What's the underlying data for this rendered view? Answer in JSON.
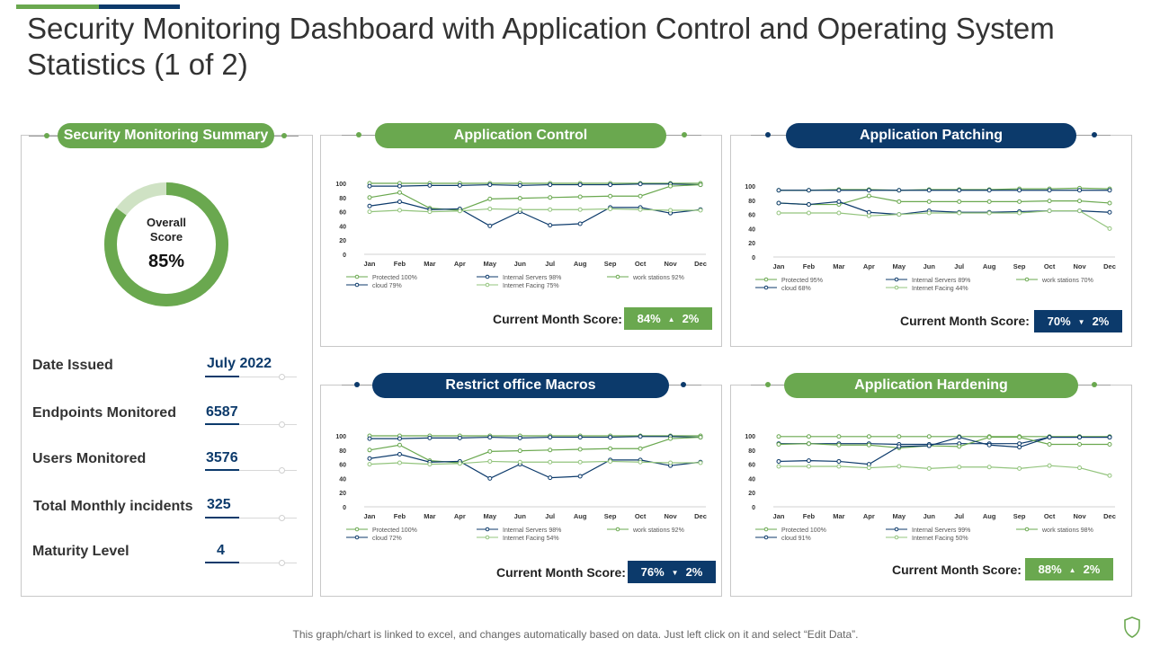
{
  "title": "Security Monitoring Dashboard with Application Control and Operating System Statistics (1 of 2)",
  "colors": {
    "green": "#6aa84f",
    "navy": "#0c3a6b",
    "light_green": "#cfe2c4"
  },
  "summary": {
    "header": "Security Monitoring Summary",
    "overall_label_1": "Overall",
    "overall_label_2": "Score",
    "overall_value": "85%",
    "overall_percent": 85,
    "stats": [
      {
        "label": "Date Issued",
        "value": "July 2022"
      },
      {
        "label": "Endpoints Monitored",
        "value": "6587"
      },
      {
        "label": "Users Monitored",
        "value": "3576"
      },
      {
        "label": "Total Monthly incidents",
        "value": "325"
      },
      {
        "label": "Maturity Level",
        "value": "4"
      }
    ]
  },
  "panels": [
    {
      "header": "Application Control",
      "score_label": "Current Month Score:",
      "score_value": "84%",
      "score_arrow": "▲",
      "score_change": "2%",
      "score_color": "green"
    },
    {
      "header": "Application Patching",
      "score_label": "Current Month Score:",
      "score_value": "70%",
      "score_arrow": "▼",
      "score_change": "2%",
      "score_color": "navy"
    },
    {
      "header": "Restrict  office Macros",
      "score_label": "Current Month Score:",
      "score_value": "76%",
      "score_arrow": "▼",
      "score_change": "2%",
      "score_color": "navy"
    },
    {
      "header": "Application Hardening",
      "score_label": "Current Month Score:",
      "score_value": "88%",
      "score_arrow": "▲",
      "score_change": "2%",
      "score_color": "green"
    }
  ],
  "chart_data": [
    {
      "type": "line",
      "title": "Application Control",
      "categories": [
        "Jan",
        "Feb",
        "Mar",
        "Apr",
        "May",
        "Jun",
        "Jul",
        "Aug",
        "Sep",
        "Oct",
        "Nov",
        "Dec"
      ],
      "ylim": [
        0,
        100
      ],
      "yticks": [
        "0",
        "20",
        "40",
        "60",
        "80",
        "100"
      ],
      "series": [
        {
          "name": "Protected 100%",
          "color": "#6aa84f",
          "values": [
            100,
            100,
            100,
            100,
            100,
            100,
            100,
            100,
            100,
            100,
            100,
            100
          ]
        },
        {
          "name": "Internal Servers 98%",
          "color": "#0c3a6b",
          "values": [
            96,
            96,
            97,
            97,
            98,
            97,
            98,
            98,
            98,
            99,
            99,
            98
          ]
        },
        {
          "name": "work stations 92%",
          "color": "#6aa84f",
          "values": [
            80,
            87,
            65,
            62,
            78,
            79,
            80,
            81,
            82,
            82,
            96,
            98
          ]
        },
        {
          "name": "cloud 79%",
          "color": "#0c3a6b",
          "values": [
            68,
            74,
            63,
            64,
            40,
            60,
            41,
            43,
            66,
            66,
            58,
            63
          ]
        },
        {
          "name": "Internet Facing 75%",
          "color": "#93c47d",
          "values": [
            60,
            62,
            60,
            61,
            64,
            63,
            63,
            63,
            64,
            63,
            62,
            62
          ]
        }
      ]
    },
    {
      "type": "line",
      "title": "Application Patching",
      "categories": [
        "Jan",
        "Feb",
        "Mar",
        "Apr",
        "May",
        "Jun",
        "Jul",
        "Aug",
        "Sep",
        "Oct",
        "Nov",
        "Dec"
      ],
      "ylim": [
        0,
        100
      ],
      "yticks": [
        "0",
        "20",
        "40",
        "60",
        "80",
        "100"
      ],
      "series": [
        {
          "name": "Protected 95%",
          "color": "#6aa84f",
          "values": [
            94,
            94,
            95,
            95,
            94,
            95,
            95,
            95,
            96,
            96,
            97,
            96
          ]
        },
        {
          "name": "Internal Servers 89%",
          "color": "#0c3a6b",
          "values": [
            94,
            94,
            94,
            94,
            94,
            94,
            94,
            94,
            94,
            94,
            94,
            94
          ]
        },
        {
          "name": "work stations 70%",
          "color": "#6aa84f",
          "values": [
            76,
            74,
            74,
            86,
            78,
            78,
            78,
            78,
            78,
            79,
            79,
            76
          ]
        },
        {
          "name": "cloud 68%",
          "color": "#0c3a6b",
          "values": [
            76,
            74,
            78,
            63,
            60,
            65,
            63,
            63,
            64,
            65,
            65,
            63
          ]
        },
        {
          "name": "Internet Facing 44%",
          "color": "#93c47d",
          "values": [
            62,
            62,
            62,
            58,
            60,
            62,
            62,
            62,
            62,
            65,
            65,
            40
          ]
        }
      ]
    },
    {
      "type": "line",
      "title": "Restrict  office Macros",
      "categories": [
        "Jan",
        "Feb",
        "Mar",
        "Apr",
        "May",
        "Jun",
        "Jul",
        "Aug",
        "Sep",
        "Oct",
        "Nov",
        "Dec"
      ],
      "ylim": [
        0,
        100
      ],
      "yticks": [
        "0",
        "20",
        "40",
        "60",
        "80",
        "100"
      ],
      "series": [
        {
          "name": "Protected 100%",
          "color": "#6aa84f",
          "values": [
            100,
            100,
            100,
            100,
            100,
            100,
            100,
            100,
            100,
            100,
            100,
            100
          ]
        },
        {
          "name": "Internal Servers 98%",
          "color": "#0c3a6b",
          "values": [
            96,
            96,
            97,
            97,
            98,
            97,
            98,
            98,
            98,
            99,
            99,
            98
          ]
        },
        {
          "name": "work stations 92%",
          "color": "#6aa84f",
          "values": [
            80,
            87,
            65,
            62,
            78,
            79,
            80,
            81,
            82,
            82,
            96,
            98
          ]
        },
        {
          "name": "cloud 72%",
          "color": "#0c3a6b",
          "values": [
            68,
            74,
            63,
            64,
            40,
            60,
            41,
            43,
            66,
            66,
            58,
            63
          ]
        },
        {
          "name": "Internet Facing 54%",
          "color": "#93c47d",
          "values": [
            60,
            62,
            60,
            61,
            64,
            63,
            63,
            63,
            64,
            63,
            62,
            62
          ]
        }
      ]
    },
    {
      "type": "line",
      "title": "Application Hardening",
      "categories": [
        "Jan",
        "Feb",
        "Mar",
        "Apr",
        "May",
        "Jun",
        "Jul",
        "Aug",
        "Sep",
        "Oct",
        "Nov",
        "Dec"
      ],
      "ylim": [
        0,
        100
      ],
      "yticks": [
        "0",
        "20",
        "40",
        "60",
        "80",
        "100"
      ],
      "series": [
        {
          "name": "Protected 100%",
          "color": "#6aa84f",
          "values": [
            99,
            99,
            99,
            99,
            99,
            99,
            99,
            99,
            99,
            99,
            99,
            99
          ]
        },
        {
          "name": "Internal Servers 99%",
          "color": "#0c3a6b",
          "values": [
            89,
            89,
            89,
            89,
            88,
            88,
            89,
            89,
            89,
            98,
            98,
            98
          ]
        },
        {
          "name": "work stations 98%",
          "color": "#6aa84f",
          "values": [
            88,
            89,
            87,
            87,
            83,
            86,
            85,
            98,
            98,
            88,
            88,
            88
          ]
        },
        {
          "name": "cloud 91%",
          "color": "#0c3a6b",
          "values": [
            64,
            65,
            64,
            60,
            85,
            86,
            98,
            87,
            84,
            98,
            98,
            98
          ]
        },
        {
          "name": "Internet Facing 50%",
          "color": "#93c47d",
          "values": [
            57,
            57,
            57,
            55,
            57,
            54,
            56,
            56,
            54,
            58,
            55,
            44
          ]
        }
      ]
    }
  ],
  "footnote": "This graph/chart is linked to excel, and changes automatically based on data. Just left click on it and select “Edit Data”."
}
